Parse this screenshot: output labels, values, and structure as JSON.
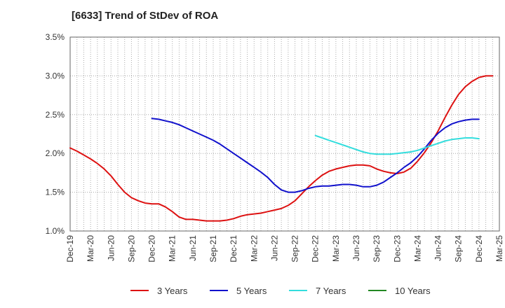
{
  "chart_data": {
    "type": "line",
    "title": "[6633]  Trend of StDev of ROA",
    "xlabel": "",
    "ylabel": "",
    "ylim": [
      1.0,
      3.5
    ],
    "y_ticks": [
      "1.0%",
      "1.5%",
      "2.0%",
      "2.5%",
      "3.0%",
      "3.5%"
    ],
    "x_ticks": [
      "Dec-19",
      "Mar-20",
      "Jun-20",
      "Sep-20",
      "Dec-20",
      "Mar-21",
      "Jun-21",
      "Sep-21",
      "Dec-21",
      "Mar-22",
      "Jun-22",
      "Sep-22",
      "Dec-22",
      "Mar-23",
      "Jun-23",
      "Sep-23",
      "Dec-23",
      "Mar-24",
      "Jun-24",
      "Sep-24",
      "Dec-24",
      "Mar-25"
    ],
    "grid": true,
    "legend_position": "bottom",
    "x_start": "Dec-19",
    "series": [
      {
        "name": "3 Years",
        "color": "#dd1111",
        "start": "Dec-19",
        "values": [
          2.07,
          2.03,
          1.98,
          1.93,
          1.87,
          1.8,
          1.71,
          1.6,
          1.5,
          1.43,
          1.39,
          1.36,
          1.35,
          1.35,
          1.31,
          1.25,
          1.18,
          1.15,
          1.15,
          1.14,
          1.13,
          1.13,
          1.13,
          1.14,
          1.16,
          1.19,
          1.21,
          1.22,
          1.23,
          1.25,
          1.27,
          1.29,
          1.33,
          1.39,
          1.48,
          1.57,
          1.65,
          1.72,
          1.77,
          1.8,
          1.82,
          1.84,
          1.85,
          1.85,
          1.84,
          1.8,
          1.77,
          1.75,
          1.74,
          1.76,
          1.81,
          1.9,
          2.01,
          2.14,
          2.29,
          2.46,
          2.62,
          2.76,
          2.86,
          2.93,
          2.98,
          3.0,
          3.0
        ]
      },
      {
        "name": "5 Years",
        "color": "#1111cc",
        "start": "Dec-20",
        "values": [
          2.45,
          2.44,
          2.42,
          2.4,
          2.37,
          2.33,
          2.29,
          2.25,
          2.21,
          2.17,
          2.12,
          2.06,
          2.0,
          1.94,
          1.88,
          1.82,
          1.76,
          1.69,
          1.6,
          1.53,
          1.5,
          1.5,
          1.52,
          1.55,
          1.57,
          1.58,
          1.58,
          1.59,
          1.6,
          1.6,
          1.59,
          1.57,
          1.57,
          1.59,
          1.63,
          1.69,
          1.75,
          1.82,
          1.88,
          1.96,
          2.06,
          2.17,
          2.26,
          2.33,
          2.38,
          2.41,
          2.43,
          2.44,
          2.44
        ]
      },
      {
        "name": "7 Years",
        "color": "#33dddd",
        "start": "Dec-22",
        "values": [
          2.23,
          2.2,
          2.17,
          2.14,
          2.11,
          2.08,
          2.05,
          2.02,
          2.0,
          1.99,
          1.99,
          1.99,
          2.0,
          2.01,
          2.02,
          2.04,
          2.07,
          2.1,
          2.13,
          2.16,
          2.18,
          2.19,
          2.2,
          2.2,
          2.19
        ]
      },
      {
        "name": "10 Years",
        "color": "#228822",
        "start": "Dec-24",
        "values": []
      }
    ]
  }
}
